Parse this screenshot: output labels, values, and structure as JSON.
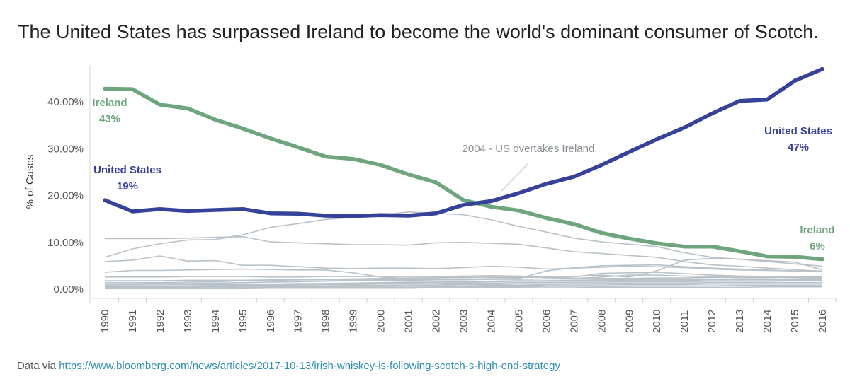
{
  "title": "The United States has surpassed Ireland to become the world's dominant consumer of Scotch.",
  "source": {
    "prefix": "Data via",
    "link_text": "https://www.bloomberg.com/news/articles/2017-10-13/irish-whiskey-is-following-scotch-s-high-end-strategy"
  },
  "colors": {
    "us": "#36419a",
    "ireland": "#6ea57d",
    "other": "#b9c2c8",
    "annotation": "#8a8f93"
  },
  "chart_data": {
    "type": "line",
    "xlabel": "",
    "ylabel": "% of Cases",
    "y_ticks": [
      "0.00%",
      "10.00%",
      "20.00%",
      "30.00%",
      "40.00%"
    ],
    "y_tick_values": [
      0,
      10,
      20,
      30,
      40
    ],
    "ylim": [
      0,
      48
    ],
    "grid": false,
    "x": [
      1990,
      1991,
      1992,
      1993,
      1994,
      1995,
      1996,
      1997,
      1998,
      1999,
      2000,
      2001,
      2002,
      2003,
      2004,
      2005,
      2006,
      2007,
      2008,
      2009,
      2010,
      2011,
      2012,
      2013,
      2014,
      2015,
      2016
    ],
    "highlighted": [
      {
        "name": "United States",
        "color_key": "us",
        "values": [
          19.0,
          16.6,
          17.1,
          16.7,
          16.9,
          17.1,
          16.2,
          16.1,
          15.7,
          15.6,
          15.8,
          15.7,
          16.2,
          18.0,
          18.8,
          20.5,
          22.5,
          24.0,
          26.5,
          29.3,
          32.0,
          34.5,
          37.5,
          40.2,
          40.5,
          44.5,
          47.0
        ],
        "start_label": "United States",
        "start_value": "19%",
        "end_label": "United States",
        "end_value": "47%"
      },
      {
        "name": "Ireland",
        "color_key": "ireland",
        "values": [
          42.8,
          42.7,
          39.4,
          38.6,
          36.2,
          34.3,
          32.2,
          30.3,
          28.3,
          27.8,
          26.5,
          24.5,
          22.8,
          19.0,
          17.6,
          16.8,
          15.2,
          13.9,
          12.0,
          10.8,
          9.8,
          9.1,
          9.1,
          8.1,
          7.0,
          6.9,
          6.4
        ],
        "start_label": "Ireland",
        "start_value": "43%",
        "end_label": "Ireland",
        "end_value": "6%"
      }
    ],
    "other_series": [
      [
        10.8,
        10.8,
        10.8,
        10.9,
        11.1,
        11.2,
        10.1,
        9.9,
        9.7,
        9.5,
        9.5,
        9.4,
        9.9,
        10.0,
        9.8,
        9.6,
        8.8,
        8.0,
        7.6,
        7.2,
        6.8,
        5.9,
        5.2,
        4.9,
        4.5,
        4.2,
        3.8
      ],
      [
        6.8,
        8.6,
        9.7,
        10.5,
        10.6,
        11.6,
        13.2,
        14.0,
        14.9,
        15.3,
        15.8,
        16.5,
        16.2,
        15.9,
        14.8,
        13.4,
        12.2,
        10.9,
        10.1,
        9.6,
        9.1,
        7.8,
        6.8,
        6.4,
        5.9,
        5.4,
        4.9
      ],
      [
        5.9,
        6.2,
        7.1,
        6.0,
        6.1,
        5.1,
        5.1,
        4.8,
        4.5,
        4.4,
        4.5,
        4.5,
        4.4,
        4.6,
        4.9,
        4.7,
        4.3,
        4.5,
        4.7,
        4.9,
        4.8,
        4.6,
        4.3,
        4.1,
        4.0,
        3.9,
        3.7
      ],
      [
        3.6,
        4.0,
        4.0,
        4.1,
        4.2,
        4.3,
        4.2,
        4.1,
        4.1,
        3.5,
        2.6,
        2.3,
        2.5,
        2.6,
        2.5,
        2.5,
        2.6,
        2.7,
        3.0,
        2.6,
        3.9,
        6.2,
        6.6,
        6.4,
        6.1,
        5.8,
        4.1
      ],
      [
        2.6,
        2.6,
        2.6,
        2.7,
        2.7,
        2.7,
        2.6,
        2.6,
        2.7,
        2.7,
        2.7,
        2.7,
        2.7,
        2.8,
        2.9,
        2.8,
        2.5,
        2.3,
        2.6,
        3.0,
        3.0,
        2.8,
        2.6,
        2.6,
        2.6,
        2.7,
        2.7
      ],
      [
        1.8,
        1.8,
        1.8,
        1.9,
        1.9,
        1.9,
        2.0,
        2.0,
        2.0,
        2.0,
        2.0,
        2.0,
        2.1,
        2.2,
        2.2,
        2.3,
        3.9,
        4.6,
        5.0,
        5.1,
        5.2,
        4.8,
        4.5,
        4.3,
        4.1,
        3.9,
        3.9
      ],
      [
        1.4,
        1.4,
        1.4,
        1.5,
        1.6,
        1.8,
        1.9,
        2.0,
        2.1,
        2.2,
        2.3,
        2.4,
        2.4,
        2.5,
        2.6,
        2.6,
        2.5,
        2.6,
        3.4,
        3.5,
        3.6,
        3.3,
        3.0,
        2.8,
        2.7,
        2.5,
        2.4
      ],
      [
        1.1,
        1.1,
        1.2,
        1.2,
        1.3,
        1.4,
        1.5,
        1.6,
        1.7,
        1.8,
        1.9,
        1.9,
        2.0,
        2.0,
        2.1,
        2.1,
        2.2,
        2.2,
        2.3,
        2.3,
        2.4,
        2.4,
        2.5,
        2.5,
        2.5,
        2.6,
        2.6
      ],
      [
        0.9,
        0.9,
        0.9,
        1.0,
        1.0,
        1.1,
        1.1,
        1.2,
        1.2,
        1.3,
        1.4,
        1.5,
        1.5,
        1.6,
        1.7,
        1.8,
        1.8,
        1.9,
        2.0,
        2.0,
        2.1,
        2.1,
        2.1,
        2.2,
        2.2,
        2.2,
        2.2
      ],
      [
        0.7,
        0.6,
        0.6,
        0.7,
        0.8,
        0.9,
        1.0,
        1.1,
        1.2,
        1.3,
        1.3,
        1.4,
        1.5,
        1.5,
        1.6,
        1.7,
        1.7,
        1.8,
        1.8,
        1.9,
        1.9,
        1.9,
        2.0,
        2.0,
        2.0,
        2.0,
        2.0
      ],
      [
        0.5,
        0.5,
        0.6,
        0.6,
        0.7,
        0.8,
        0.8,
        0.9,
        1.0,
        1.0,
        1.1,
        1.2,
        1.2,
        1.3,
        1.3,
        1.4,
        1.4,
        1.5,
        1.5,
        1.6,
        1.6,
        1.6,
        1.7,
        1.7,
        1.7,
        1.8,
        1.8
      ],
      [
        0.4,
        0.4,
        0.4,
        0.5,
        0.5,
        0.6,
        0.6,
        0.7,
        0.7,
        0.8,
        0.8,
        0.9,
        0.9,
        1.0,
        1.0,
        1.1,
        1.1,
        1.2,
        1.2,
        1.3,
        1.3,
        1.3,
        1.4,
        1.4,
        1.4,
        1.4,
        1.4
      ],
      [
        0.3,
        0.3,
        0.3,
        0.3,
        0.4,
        0.4,
        0.5,
        0.5,
        0.5,
        0.6,
        0.6,
        0.7,
        0.7,
        0.7,
        0.8,
        0.8,
        0.9,
        0.9,
        0.9,
        1.0,
        1.0,
        1.0,
        1.1,
        1.1,
        1.1,
        1.1,
        1.1
      ],
      [
        0.2,
        0.2,
        0.2,
        0.2,
        0.2,
        0.3,
        0.3,
        0.3,
        0.3,
        0.4,
        0.4,
        0.4,
        0.5,
        0.5,
        0.5,
        0.5,
        0.6,
        0.6,
        0.6,
        0.7,
        0.7,
        0.7,
        0.7,
        0.8,
        0.8,
        0.8,
        0.8
      ],
      [
        0.1,
        0.1,
        0.1,
        0.1,
        0.1,
        0.1,
        0.2,
        0.2,
        0.2,
        0.2,
        0.2,
        0.2,
        0.3,
        0.3,
        0.3,
        0.3,
        0.3,
        0.3,
        0.4,
        0.4,
        0.4,
        0.4,
        0.4,
        0.4,
        0.5,
        0.5,
        0.5
      ]
    ],
    "annotations": [
      {
        "text": "2004 - US overtakes Ireland.",
        "x": 2004,
        "y": 18.5
      }
    ]
  }
}
